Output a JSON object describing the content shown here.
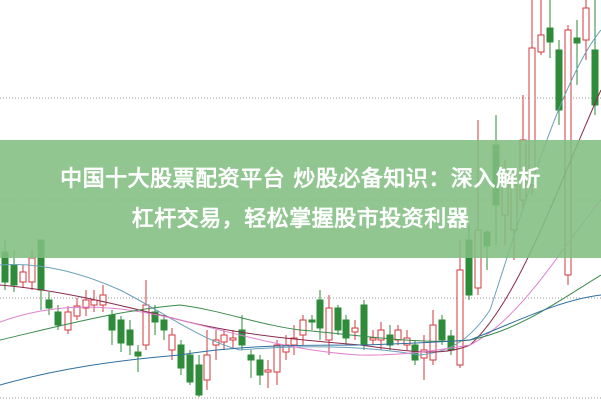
{
  "article": {
    "title_line1": "中国十大股票配资平台 炒股必备知识：深入解析",
    "title_line2": "杠杆交易，轻松掌握股市投资利器"
  },
  "colors": {
    "up": "#d0393e",
    "down": "#2e8b3a",
    "banner": "#8fc28f",
    "grid": "#999999"
  }
}
